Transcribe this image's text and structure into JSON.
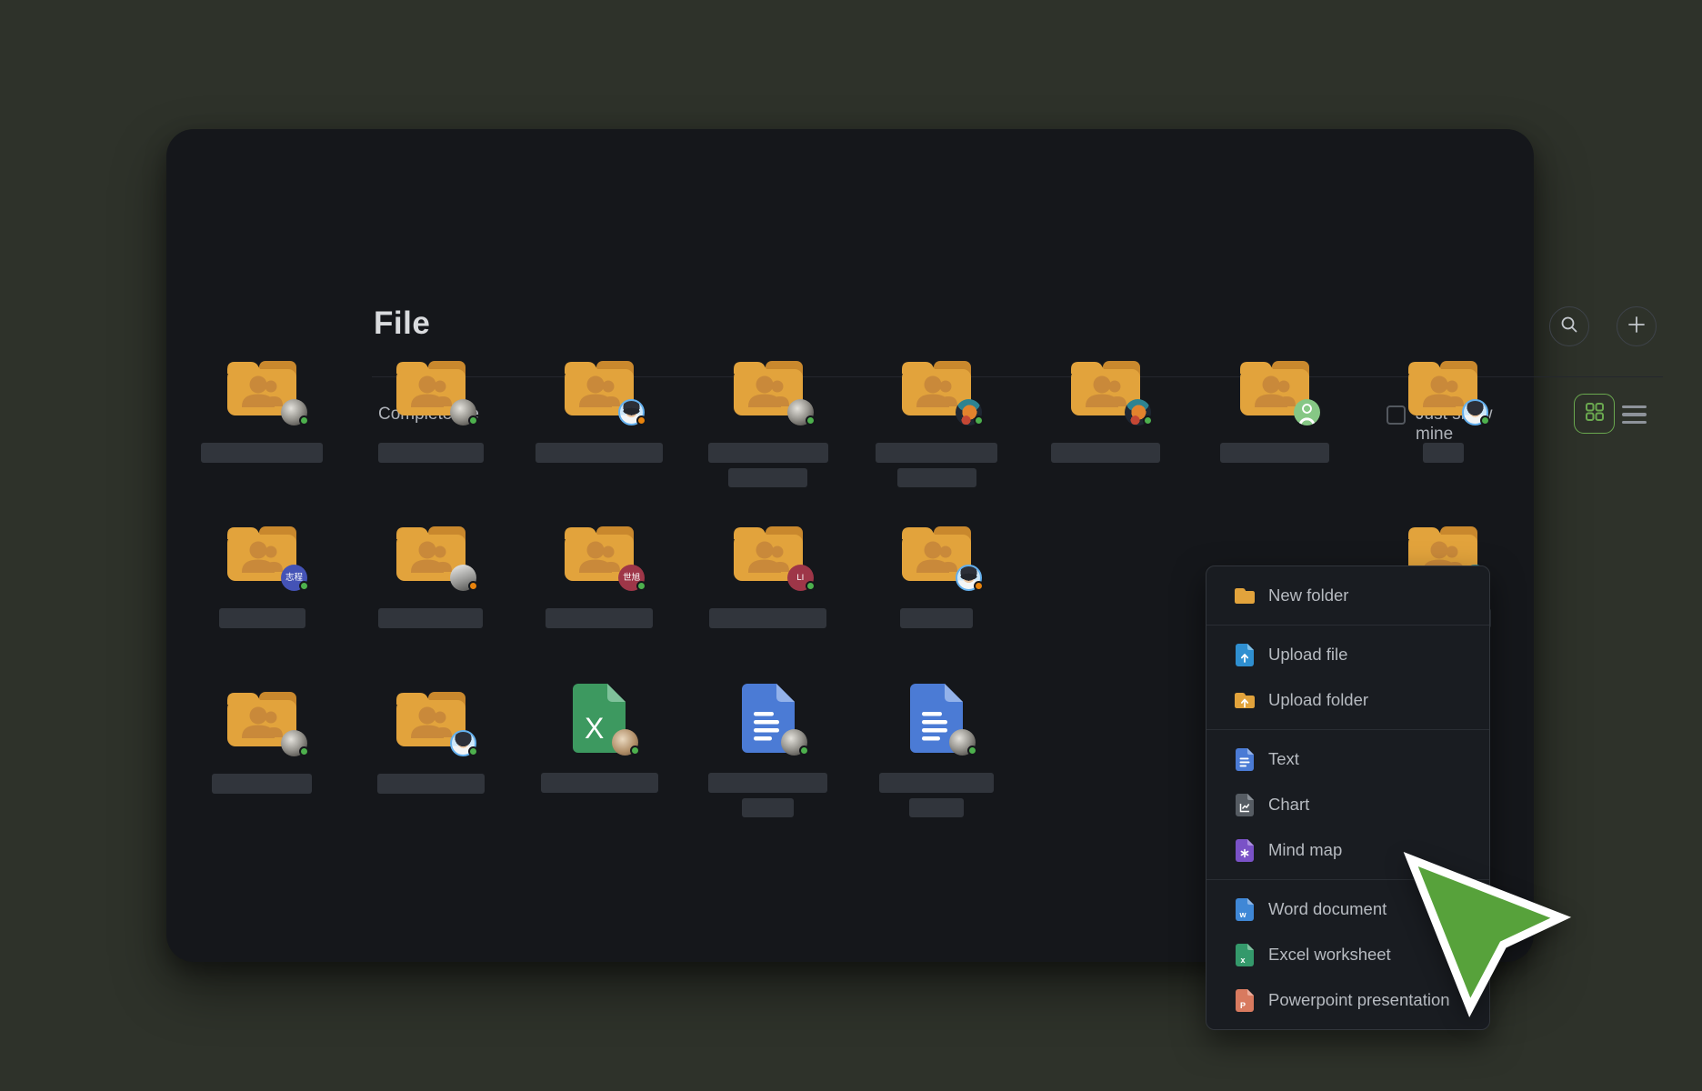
{
  "app": {
    "title": "File"
  },
  "header": {
    "buttons": [
      {
        "name": "search-button",
        "icon": "search-icon"
      },
      {
        "name": "add-button",
        "icon": "plus-icon"
      }
    ]
  },
  "toolbar": {
    "section_label": "Complete file",
    "filter_checkbox": {
      "label": "Just show mine",
      "checked": false
    },
    "view_toggles": {
      "active": "grid",
      "options": [
        "grid",
        "list"
      ]
    }
  },
  "menu": {
    "groups": [
      {
        "items": [
          {
            "icon": "new-folder-icon",
            "label": "New folder"
          }
        ]
      },
      {
        "items": [
          {
            "icon": "upload-file-icon",
            "label": "Upload file"
          },
          {
            "icon": "upload-folder-icon",
            "label": "Upload folder"
          }
        ]
      },
      {
        "items": [
          {
            "icon": "text-doc-icon",
            "label": "Text"
          },
          {
            "icon": "chart-doc-icon",
            "label": "Chart"
          },
          {
            "icon": "mindmap-doc-icon",
            "label": "Mind map"
          }
        ]
      },
      {
        "items": [
          {
            "icon": "word-doc-icon",
            "label": "Word document"
          },
          {
            "icon": "excel-doc-icon",
            "label": "Excel worksheet"
          },
          {
            "icon": "ppt-doc-icon",
            "label": "Powerpoint presentation"
          }
        ]
      }
    ]
  },
  "files": {
    "items": [
      {
        "row": 0,
        "col": 0,
        "type": "folder",
        "avatar": {
          "style": "moon"
        },
        "dot": "green",
        "bars": [
          134
        ]
      },
      {
        "row": 0,
        "col": 1,
        "type": "folder",
        "avatar": {
          "style": "moon"
        },
        "dot": "green",
        "bars": [
          116
        ]
      },
      {
        "row": 0,
        "col": 2,
        "type": "folder",
        "avatar": {
          "style": "blue-glasses"
        },
        "dot": "orange",
        "bars": [
          140
        ]
      },
      {
        "row": 0,
        "col": 3,
        "type": "folder",
        "avatar": {
          "style": "moon"
        },
        "dot": "green",
        "bars": [
          132,
          87
        ]
      },
      {
        "row": 0,
        "col": 4,
        "type": "folder",
        "avatar": {
          "style": "anime"
        },
        "dot": "green",
        "bars": [
          134,
          87
        ]
      },
      {
        "row": 0,
        "col": 5,
        "type": "folder",
        "avatar": {
          "style": "anime"
        },
        "dot": "green",
        "bars": [
          120
        ]
      },
      {
        "row": 0,
        "col": 6,
        "type": "folder",
        "avatar": {
          "style": "green-member"
        },
        "dot": "none",
        "bars": [
          120
        ]
      },
      {
        "row": 0,
        "col": 7,
        "type": "folder",
        "avatar": {
          "style": "blue-person"
        },
        "dot": "green",
        "bars": [
          45
        ]
      },
      {
        "row": 1,
        "col": 0,
        "type": "folder",
        "avatar": {
          "style": "text-indigo",
          "text": "志程"
        },
        "dot": "green",
        "bars": [
          95
        ]
      },
      {
        "row": 1,
        "col": 1,
        "type": "folder",
        "avatar": {
          "style": "photo-gray"
        },
        "dot": "orange",
        "bars": [
          115
        ]
      },
      {
        "row": 1,
        "col": 2,
        "type": "folder",
        "avatar": {
          "style": "text-red",
          "text": "世旭"
        },
        "dot": "green",
        "bars": [
          118
        ]
      },
      {
        "row": 1,
        "col": 3,
        "type": "folder",
        "avatar": {
          "style": "text-red",
          "text": "LI"
        },
        "dot": "green",
        "bars": [
          129
        ]
      },
      {
        "row": 1,
        "col": 4,
        "type": "folder",
        "avatar": {
          "style": "blue-glasses"
        },
        "dot": "orange",
        "bars": [
          80
        ]
      },
      {
        "row": 1,
        "col": 7,
        "type": "folder",
        "avatar": {
          "style": "anime"
        },
        "dot": "green",
        "bars": [
          106
        ]
      },
      {
        "row": 2,
        "col": 0,
        "type": "folder",
        "avatar": {
          "style": "moon"
        },
        "dot": "green",
        "bars": [
          110
        ]
      },
      {
        "row": 2,
        "col": 1,
        "type": "folder",
        "avatar": {
          "style": "blue-person"
        },
        "dot": "green",
        "bars": [
          118
        ]
      },
      {
        "row": 2,
        "col": 2,
        "type": "excel",
        "avatar": {
          "style": "tan-photo"
        },
        "dot": "green",
        "bars": [
          129
        ]
      },
      {
        "row": 2,
        "col": 3,
        "type": "doc",
        "avatar": {
          "style": "moon"
        },
        "dot": "green",
        "bars": [
          131,
          57
        ]
      },
      {
        "row": 2,
        "col": 4,
        "type": "doc",
        "avatar": {
          "style": "moon"
        },
        "dot": "green",
        "bars": [
          126,
          60
        ]
      }
    ],
    "clipped_label_fragment": "n"
  },
  "cursor": {
    "shape": "green-arrow-pointer",
    "color": "#57a23b"
  },
  "colors": {
    "accent_green": "#6aa84f",
    "folder_orange": "#e2a33c",
    "folder_back": "#c9882d",
    "doc_blue": "#4b7bd5",
    "excel_green": "#3d9960",
    "ppt_salmon": "#d87a5f",
    "mindmap_purple": "#7a52c7",
    "chart_gray": "#565c63",
    "status_green": "#4db04d",
    "status_orange": "#e8830c",
    "window_bg": "#15171b",
    "desktop_bg": "#2e322a"
  }
}
